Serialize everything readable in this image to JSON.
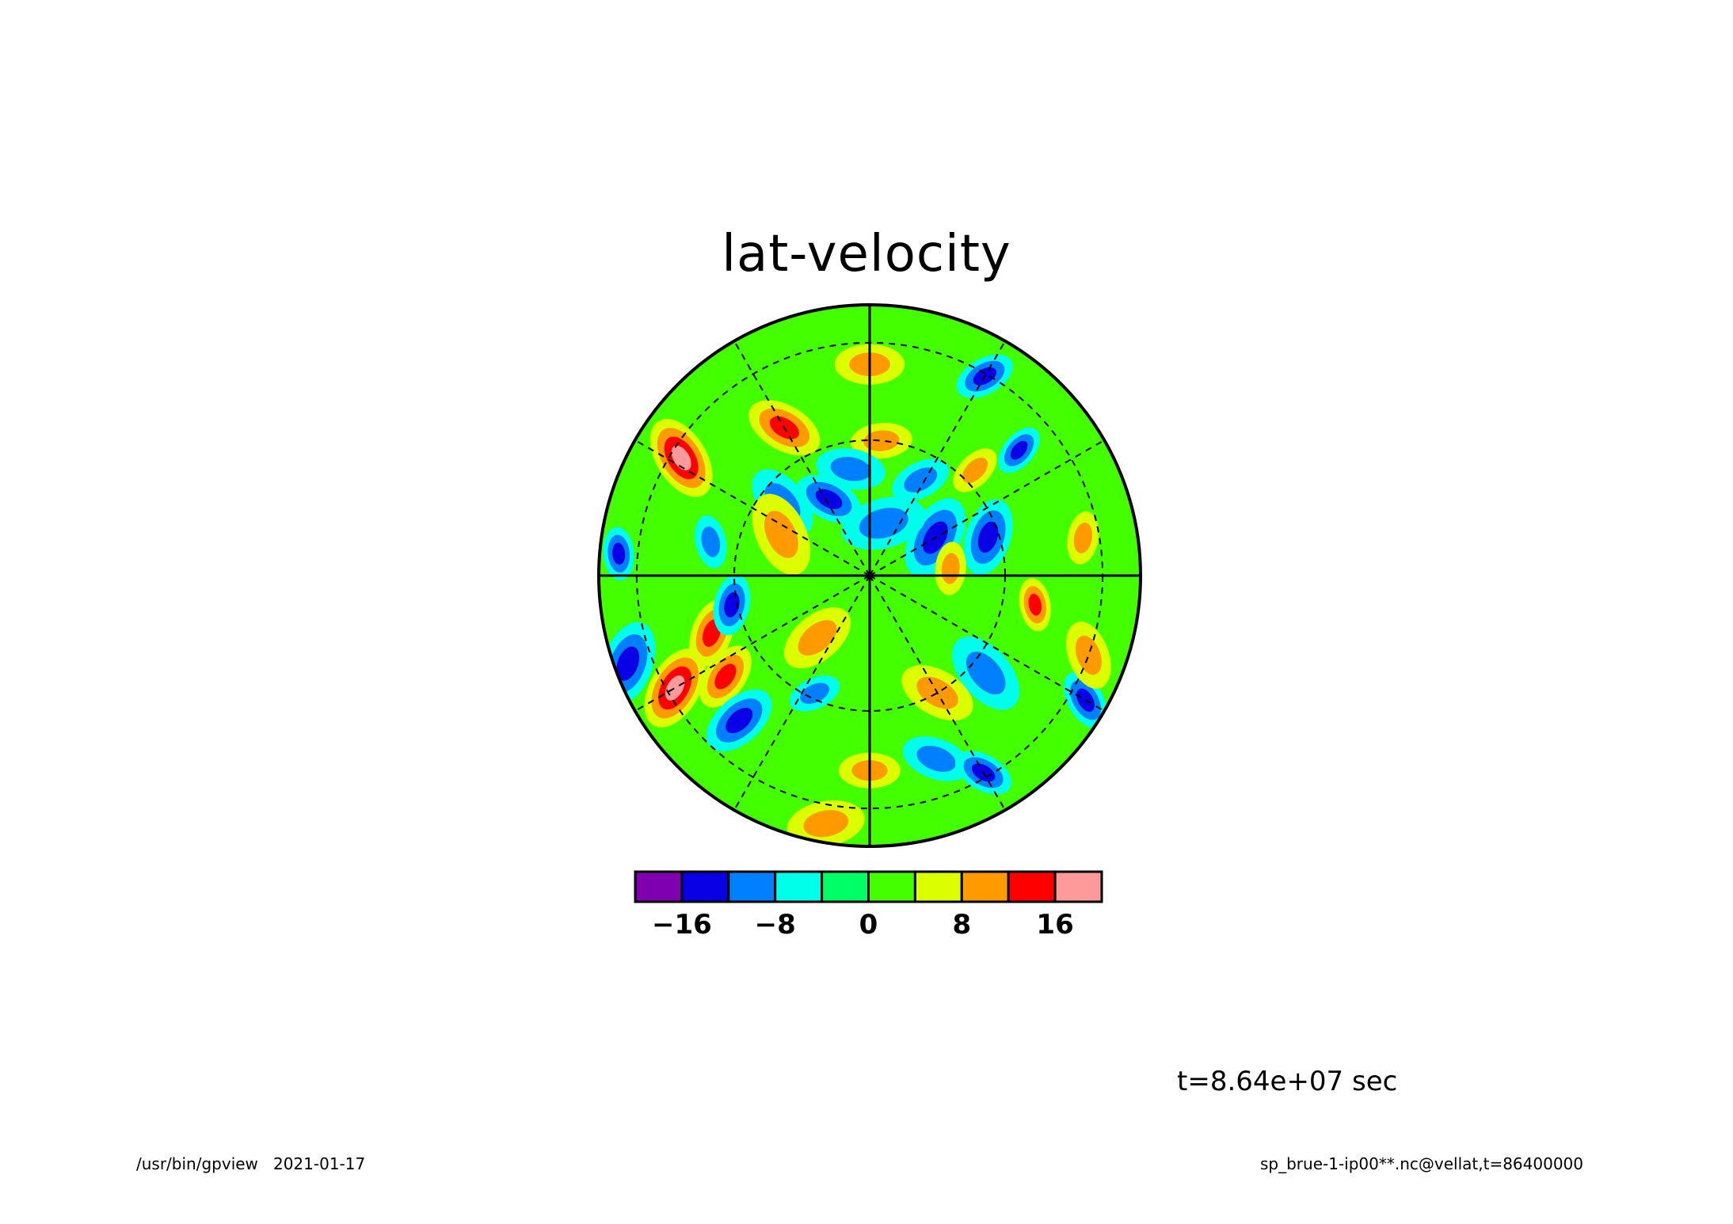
{
  "chart_data": {
    "type": "heatmap",
    "title": "lat-velocity",
    "projection": "polar stereographic (orthographic disk), pole at center",
    "grid_lines": "dashed latitude circles and meridians; solid axes cross",
    "colorbar": {
      "levels": [
        -20,
        -16,
        -12,
        -8,
        -4,
        0,
        4,
        8,
        12,
        16,
        20
      ],
      "tick_labels": [
        "-16",
        "-8",
        "0",
        "8",
        "16"
      ],
      "tick_values": [
        -16,
        -8,
        0,
        8,
        16
      ],
      "colors": [
        "#7f00b0",
        "#0a00e6",
        "#0080ff",
        "#00ffea",
        "#00ff66",
        "#44ff00",
        "#dcff00",
        "#ff9a00",
        "#ff0000",
        "#ff9a9a"
      ]
    },
    "annotation_time": "t=8.64e+07 sec"
  },
  "footer": {
    "left": "/usr/bin/gpview   2021-01-17",
    "right": "sp_brue-1-ip00**.nc@vellat,t=86400000"
  },
  "blobs": [
    {
      "v": -14,
      "a": 40,
      "r": 0.72
    },
    {
      "v": -14,
      "a": 330,
      "r": 0.92
    },
    {
      "v": 14,
      "a": 200,
      "r": 0.62
    },
    {
      "v": 14,
      "a": 120,
      "r": 0.63
    },
    {
      "v": 18,
      "a": 148,
      "r": 0.82
    },
    {
      "v": -14,
      "a": 175,
      "r": 0.93
    },
    {
      "v": 10,
      "a": 85,
      "r": 0.5
    },
    {
      "v": -10,
      "a": 100,
      "r": 0.4
    },
    {
      "v": -14,
      "a": 18,
      "r": 0.46
    },
    {
      "v": -13,
      "a": 30,
      "r": 0.28
    },
    {
      "v": 10,
      "a": 45,
      "r": 0.55
    },
    {
      "v": -10,
      "a": 62,
      "r": 0.4
    },
    {
      "v": -12,
      "a": 118,
      "r": 0.32
    },
    {
      "v": -10,
      "a": 140,
      "r": 0.42
    },
    {
      "v": 10,
      "a": 155,
      "r": 0.36
    },
    {
      "v": -10,
      "a": 168,
      "r": 0.6
    },
    {
      "v": -12,
      "a": 192,
      "r": 0.52
    },
    {
      "v": 12,
      "a": 215,
      "r": 0.65
    },
    {
      "v": -12,
      "a": 228,
      "r": 0.72
    },
    {
      "v": 16,
      "a": 210,
      "r": 0.83
    },
    {
      "v": -10,
      "a": 245,
      "r": 0.48
    },
    {
      "v": 10,
      "a": 270,
      "r": 0.72
    },
    {
      "v": -10,
      "a": 290,
      "r": 0.72
    },
    {
      "v": 10,
      "a": 300,
      "r": 0.5
    },
    {
      "v": -10,
      "a": 320,
      "r": 0.56
    },
    {
      "v": 12,
      "a": 350,
      "r": 0.62
    },
    {
      "v": -12,
      "a": 300,
      "r": 0.84
    },
    {
      "v": 10,
      "a": 340,
      "r": 0.86
    },
    {
      "v": 10,
      "a": 260,
      "r": 0.93
    },
    {
      "v": -12,
      "a": 200,
      "r": 0.95
    },
    {
      "v": 10,
      "a": 10,
      "r": 0.8
    },
    {
      "v": -12,
      "a": 60,
      "r": 0.85
    },
    {
      "v": 10,
      "a": 90,
      "r": 0.78
    },
    {
      "v": 10,
      "a": 230,
      "r": 0.3
    },
    {
      "v": -8,
      "a": 75,
      "r": 0.2
    },
    {
      "v": 8,
      "a": 5,
      "r": 0.3
    }
  ]
}
